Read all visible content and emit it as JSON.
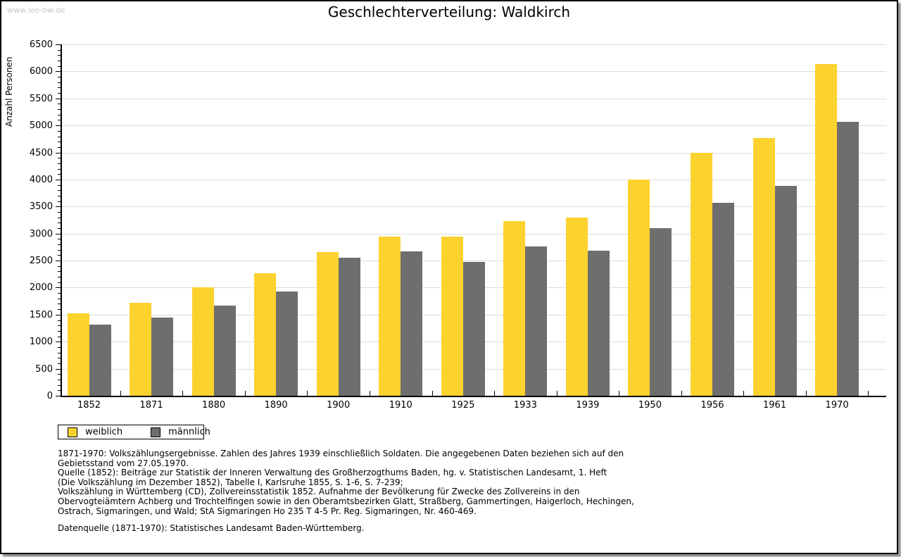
{
  "page": {
    "watermark": "www.leo-bw.de",
    "title": "Geschlechterverteilung: Waldkirch"
  },
  "chart_data": {
    "type": "bar",
    "title": "Geschlechterverteilung: Waldkirch",
    "xlabel": "",
    "ylabel": "Anzahl Personen",
    "ylim": [
      0,
      6500
    ],
    "ytick_step": 500,
    "y_minor_tick_step": 100,
    "grid": true,
    "legend_position": "bottom-left",
    "categories": [
      "1852",
      "1871",
      "1880",
      "1890",
      "1900",
      "1910",
      "1925",
      "1933",
      "1939",
      "1950",
      "1956",
      "1961",
      "1970"
    ],
    "series": [
      {
        "name": "weiblich",
        "color": "#fcd22f",
        "values": [
          1530,
          1720,
          2010,
          2270,
          2660,
          2940,
          2950,
          3230,
          3300,
          4000,
          4500,
          4770,
          6130
        ]
      },
      {
        "name": "männlich",
        "color": "#6e6e6e",
        "values": [
          1320,
          1440,
          1670,
          1930,
          2550,
          2670,
          2480,
          2760,
          2690,
          3100,
          3570,
          3880,
          5070
        ]
      }
    ],
    "colors": {
      "grid": "#dcdcdc",
      "axis": "#000000"
    }
  },
  "footnotes": {
    "lines": [
      "1871-1970: Volkszählungsergebnisse. Zahlen des Jahres 1939 einschließlich Soldaten. Die angegebenen Daten beziehen sich auf den",
      "Gebietsstand vom 27.05.1970.",
      "Quelle (1852): Beiträge zur Statistik der Inneren Verwaltung des Großherzogthums Baden, hg. v. Statistischen Landesamt, 1. Heft",
      "(Die Volkszählung im Dezember 1852), Tabelle I, Karlsruhe 1855, S. 1-6, S. 7-239;",
      "Volkszählung in Württemberg (CD), Zollvereinsstatistik 1852. Aufnahme der Bevölkerung für Zwecke des Zollvereins in den",
      "Obervogteiämtern Achberg und Trochtelfingen sowie in den Oberamtsbezirken Glatt, Straßberg, Gammertingen, Haigerloch, Hechingen,",
      "Ostrach, Sigmaringen, und Wald; StA Sigmaringen Ho 235 T 4-5 Pr. Reg. Sigmaringen, Nr. 460-469."
    ],
    "datasource": "Datenquelle (1871-1970): Statistisches Landesamt Baden-Württemberg."
  }
}
